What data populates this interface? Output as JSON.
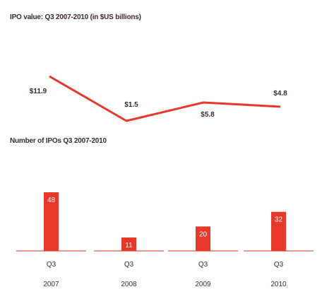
{
  "charts": {
    "line_title": "IPO value: Q3 2007-2010 (in $US billions)",
    "bar_title": "Number of IPOs Q3 2007-2010"
  },
  "chart_data": [
    {
      "type": "line",
      "title": "IPO value: Q3 2007-2010 (in $US billions)",
      "categories": [
        "Q3 2007",
        "Q3 2008",
        "Q3 2009",
        "Q3 2010"
      ],
      "values": [
        11.9,
        1.5,
        5.8,
        4.8
      ],
      "value_labels": [
        "$11.9",
        "$1.5",
        "$5.8",
        "$4.8"
      ],
      "color": "#e8382a",
      "grid": false
    },
    {
      "type": "bar",
      "title": "Number of IPOs Q3 2007-2010",
      "categories": [
        "Q3 2007",
        "Q3 2008",
        "Q3 2009",
        "Q3 2010"
      ],
      "category_lines": [
        [
          "Q3",
          "2007"
        ],
        [
          "Q3",
          "2008"
        ],
        [
          "Q3",
          "2009"
        ],
        [
          "Q3",
          "2010"
        ]
      ],
      "values": [
        48,
        11,
        20,
        32
      ],
      "color": "#e8382a",
      "grid": false
    }
  ]
}
